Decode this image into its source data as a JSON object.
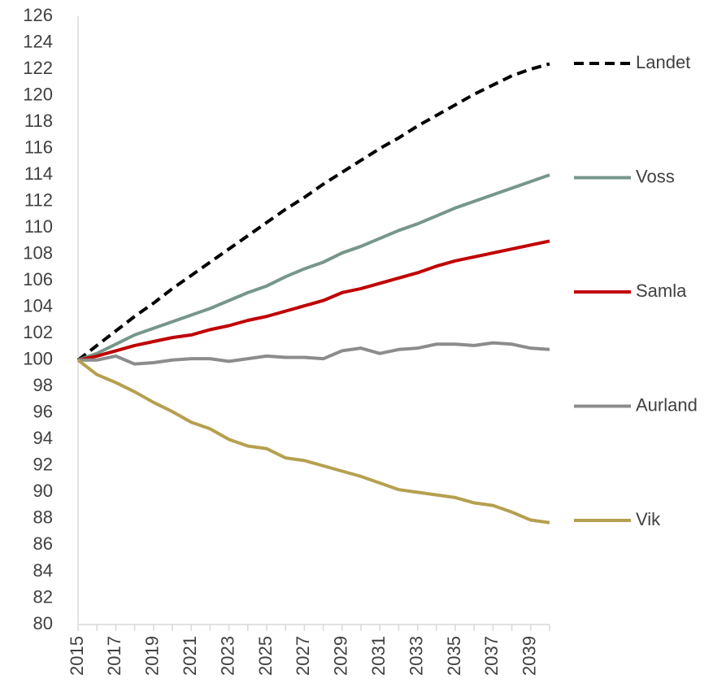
{
  "chart_data": {
    "type": "line",
    "categories": [
      "2015",
      null,
      "2017",
      null,
      "2019",
      null,
      "2021",
      null,
      "2023",
      null,
      "2025",
      null,
      "2027",
      null,
      "2029",
      null,
      "2031",
      null,
      "2033",
      null,
      "2035",
      null,
      "2037",
      null,
      "2039",
      null
    ],
    "series": [
      {
        "name": "Landet",
        "color": "#000000",
        "style": "dashed",
        "values": [
          100,
          101.1,
          102.2,
          103.3,
          104.3,
          105.4,
          106.4,
          107.4,
          108.4,
          109.4,
          110.4,
          111.4,
          112.3,
          113.3,
          114.2,
          115.1,
          116.0,
          116.8,
          117.7,
          118.5,
          119.3,
          120.1,
          120.8,
          121.5,
          122.0,
          122.4
        ]
      },
      {
        "name": "Voss",
        "color": "#76978a",
        "style": "solid",
        "values": [
          100,
          100.5,
          101.2,
          101.9,
          102.4,
          102.9,
          103.4,
          103.9,
          104.5,
          105.1,
          105.6,
          106.3,
          106.9,
          107.4,
          108.1,
          108.6,
          109.2,
          109.8,
          110.3,
          110.9,
          111.5,
          112.0,
          112.5,
          113.0,
          113.5,
          114.0
        ]
      },
      {
        "name": "Samla",
        "color": "#c00000",
        "style": "solid",
        "values": [
          100,
          100.3,
          100.7,
          101.1,
          101.4,
          101.7,
          101.9,
          102.3,
          102.6,
          103.0,
          103.3,
          103.7,
          104.1,
          104.5,
          105.1,
          105.4,
          105.8,
          106.2,
          106.6,
          107.1,
          107.5,
          107.8,
          108.1,
          108.4,
          108.7,
          109.0
        ]
      },
      {
        "name": "Aurland",
        "color": "#8c8c8c",
        "style": "solid",
        "values": [
          100,
          100.0,
          100.3,
          99.7,
          99.8,
          100.0,
          100.1,
          100.1,
          99.9,
          100.1,
          100.3,
          100.2,
          100.2,
          100.1,
          100.7,
          100.9,
          100.5,
          100.8,
          100.9,
          101.2,
          101.2,
          101.1,
          101.3,
          101.2,
          100.9,
          100.8
        ]
      },
      {
        "name": "Vik",
        "color": "#b5a04f",
        "style": "solid",
        "values": [
          100,
          98.9,
          98.3,
          97.6,
          96.8,
          96.1,
          95.3,
          94.8,
          94.0,
          93.5,
          93.3,
          92.6,
          92.4,
          92.0,
          91.6,
          91.2,
          90.7,
          90.2,
          90.0,
          89.8,
          89.6,
          89.2,
          89.0,
          88.5,
          87.9,
          87.7
        ]
      }
    ],
    "ylim": [
      80,
      126
    ],
    "yticks": [
      80,
      82,
      84,
      86,
      88,
      90,
      92,
      94,
      96,
      98,
      100,
      102,
      104,
      106,
      108,
      110,
      112,
      114,
      116,
      118,
      120,
      122,
      124,
      126
    ],
    "grid": false,
    "legend": "right"
  }
}
